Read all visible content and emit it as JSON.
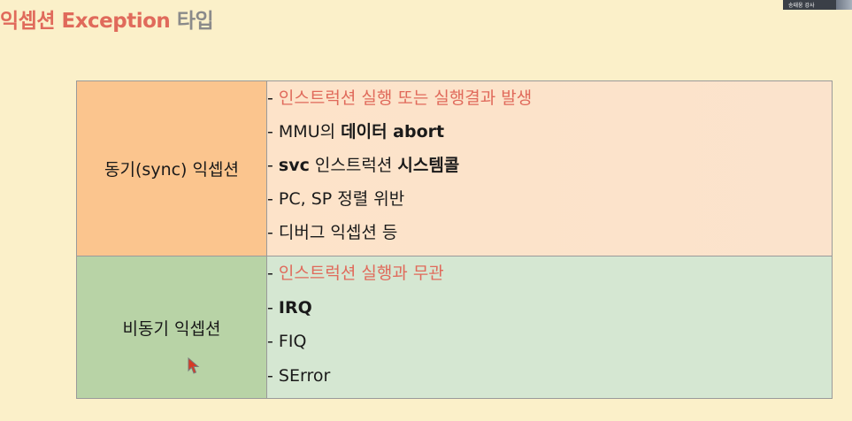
{
  "title": {
    "part1": "익셉션 Exception",
    "part2": "타입"
  },
  "webcam": {
    "label": "송태웅 강사"
  },
  "table": {
    "sync": {
      "label": "동기(sync) 익셉션",
      "items": {
        "0": {
          "dash": "- ",
          "red": "인스트럭션 실행 또는 실행결과 발생"
        },
        "1": {
          "dash": "- ",
          "plain": "MMU의 ",
          "bold": "데이터 abort"
        },
        "2": {
          "dash": "- ",
          "bold1": "svc",
          "plain": " 인스트럭션 ",
          "bold2": "시스템콜"
        },
        "3": {
          "dash": "- ",
          "plain": "PC, SP 정렬 위반"
        },
        "4": {
          "dash": "- ",
          "plain": "디버그 익셉션 등"
        }
      }
    },
    "async": {
      "label": "비동기 익셉션",
      "items": {
        "0": {
          "dash": "- ",
          "red": "인스트럭션 실행과 무관"
        },
        "1": {
          "dash": "- ",
          "bold": "IRQ"
        },
        "2": {
          "dash": "- ",
          "plain": "FIQ"
        },
        "3": {
          "dash": "- ",
          "plain": "SError"
        }
      }
    }
  },
  "colors": {
    "title_red": "#e06a5b",
    "title_gray": "#8a8a8a",
    "sync_label_bg": "#fbc58e",
    "sync_list_bg": "#fde3c9",
    "async_label_bg": "#b8d3a6",
    "async_list_bg": "#d5e7d2",
    "page_bg": "#fbf0c9"
  },
  "icons": {
    "cursor": "mouse-pointer-icon"
  }
}
